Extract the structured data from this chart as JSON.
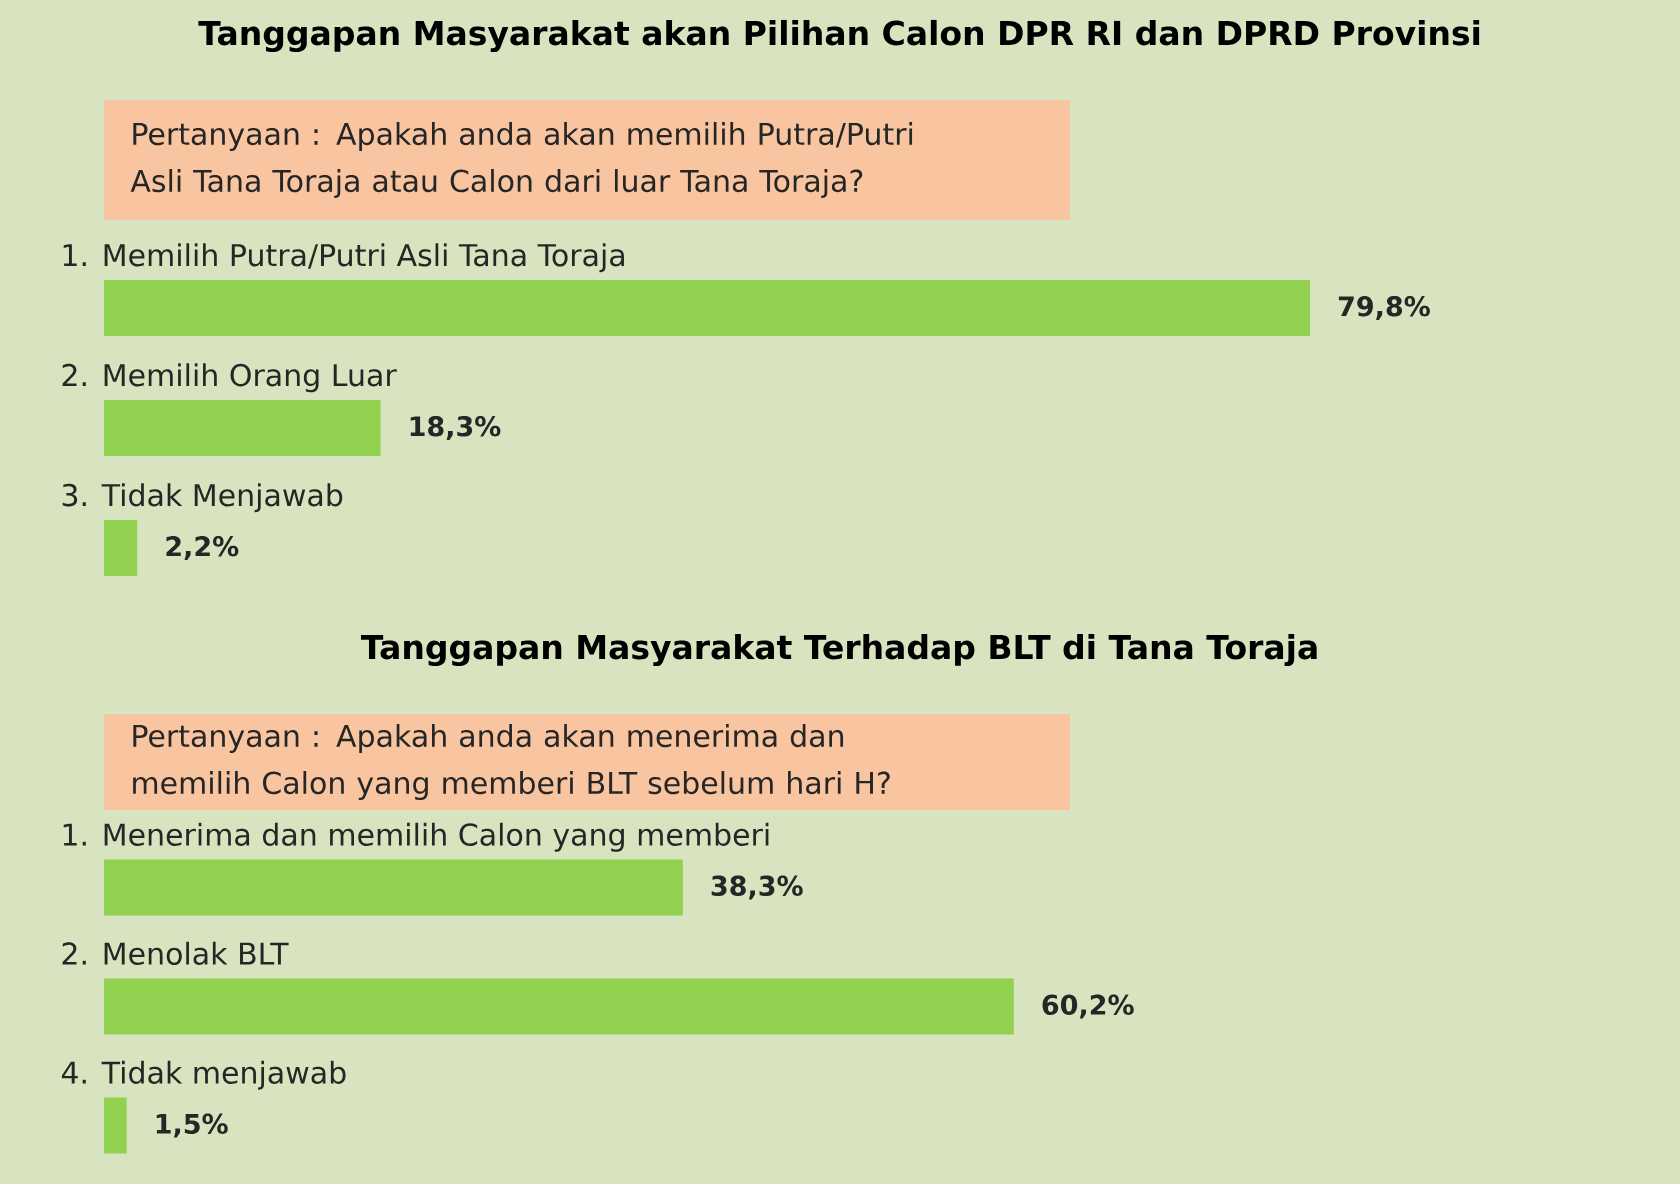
{
  "chart_data": [
    {
      "type": "bar",
      "orientation": "horizontal",
      "title": "Tanggapan Masyarakat akan Pilihan Calon DPR RI dan DPRD Provinsi",
      "subtitle": "Pertanyaan : Apakah anda akan memilih Putra/Putri Asli Tana Toraja atau Calon dari luar Tana Toraja?",
      "categories": [
        "1. Memilih Putra/Putri Asli Tana Toraja",
        "2. Memilih Orang Luar",
        "3. Tidak Menjawab"
      ],
      "values": [
        79.8,
        18.3,
        2.2
      ],
      "value_labels": [
        "79,8%",
        "18,3%",
        "2,2%"
      ],
      "color": "#92d050"
    },
    {
      "type": "bar",
      "orientation": "horizontal",
      "title": "Tanggapan Masyarakat Terhadap BLT di Tana Toraja",
      "subtitle": "Pertanyaan : Apakah anda akan menerima dan memilih Calon yang memberi BLT sebelum hari H?",
      "categories": [
        "1. Menerima dan memilih Calon yang memberi",
        "2. Menolak BLT",
        "4. Tidak menjawab"
      ],
      "values": [
        38.3,
        60.2,
        1.5
      ],
      "value_labels": [
        "38,3%",
        "60,2%",
        "1,5%"
      ],
      "color": "#92d050"
    }
  ]
}
